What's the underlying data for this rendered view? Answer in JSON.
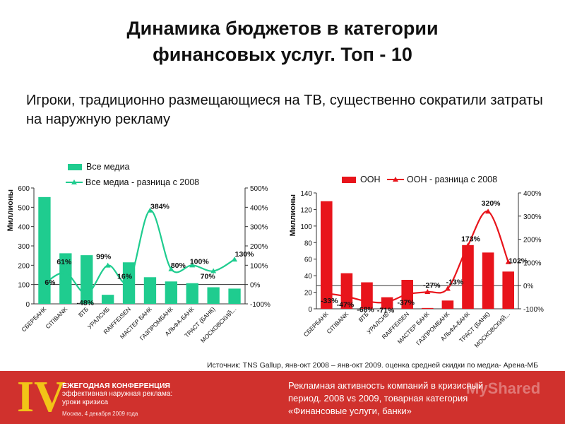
{
  "title_line1": "Динамика бюджетов в категории",
  "title_line2": "финансовых услуг. Топ - 10",
  "subtitle": "Игроки, традиционно размещающиеся на ТВ, существенно сократили затраты на наружную рекламу",
  "source": "Источник: TNS  Gallup, янв-окт 2008 – янв-окт 2009. оценка средней скидки по медиа- Арена-МБ",
  "footer": {
    "roman": "IV",
    "conf_line1": "ЕЖЕГОДНАЯ КОНФЕРЕНЦИЯ",
    "conf_line2": "эффективная наружная реклама:",
    "conf_line3": "уроки кризиса",
    "conf_line4": "Москва, 4 декабря 2009 года",
    "text_line1": "Рекламная активность компаний в кризисный",
    "text_line2": "период. 2008 vs 2009, товарная категория",
    "text_line3": "«Финансовые услуги, банки»",
    "watermark": "MyShared"
  },
  "colors": {
    "left_bar": "#1fcc8f",
    "left_line": "#1fcc8f",
    "right_bar": "#e8141b",
    "right_line": "#e8141b",
    "footer_bg": "#d0312d",
    "footer_accent": "#f2c417"
  },
  "chart_data": [
    {
      "type": "bar",
      "ylabel": "Миллионы",
      "categories": [
        "СБЕРБАНК",
        "CITIBANK",
        "ВТБ",
        "УРАЛСИБ",
        "RAIFFEISEN",
        "МАСТЕР БАНК",
        "ГАЗПРОМБАНК",
        "АЛЬФА-БАНК",
        "ТРАСТ (БАНК)",
        "МОСКОВСКИЙ..."
      ],
      "ylim": [
        0,
        600
      ],
      "y_ticks": [
        "0",
        "100",
        "200",
        "300",
        "400",
        "500",
        "600"
      ],
      "y2lim": [
        -100,
        500
      ],
      "y2_ticks": [
        "-100%",
        "0%",
        "100%",
        "200%",
        "300%",
        "400%",
        "500%"
      ],
      "legend_position": "top",
      "series": [
        {
          "name": "Все медиа",
          "kind": "bar",
          "values": [
            553,
            262,
            252,
            47,
            215,
            138,
            116,
            107,
            86,
            79
          ]
        },
        {
          "name": "Все медиа - разница с 2008",
          "kind": "line",
          "values": [
            6,
            61,
            -48,
            99,
            16,
            384,
            80,
            100,
            70,
            130
          ],
          "labels": [
            "6%",
            "61%",
            "-48%",
            "99%",
            "16%",
            "384%",
            "80%",
            "100%",
            "70%",
            "130%"
          ]
        }
      ]
    },
    {
      "type": "bar",
      "ylabel": "Миллионы",
      "categories": [
        "СБЕРБАНК",
        "CITIBANK",
        "ВТБ",
        "УРАЛСИБ",
        "RAIFFEISEN",
        "МАСТЕР БАНК",
        "ГАЗПРОМБАНК",
        "АЛЬФА-БАНК",
        "ТРАСТ (БАНК)",
        "МОСКОВСКИЙ..."
      ],
      "ylim": [
        0,
        140
      ],
      "y_ticks": [
        "0",
        "20",
        "40",
        "60",
        "80",
        "100",
        "120",
        "140"
      ],
      "y2lim": [
        -100,
        400
      ],
      "y2_ticks": [
        "-100%",
        "0%",
        "100%",
        "200%",
        "300%",
        "400%"
      ],
      "legend_position": "top",
      "series": [
        {
          "name": "ООН",
          "kind": "bar",
          "values": [
            130,
            43,
            32,
            14,
            35,
            1,
            10,
            77,
            68,
            45
          ]
        },
        {
          "name": "ООН - разница с 2008",
          "kind": "line",
          "values": [
            -33,
            -47,
            -68,
            -71,
            -37,
            -27,
            -13,
            173,
            320,
            102
          ],
          "labels": [
            "-33%",
            "-47%",
            "-68%",
            "-71%",
            "-37%",
            "-27%",
            "-13%",
            "173%",
            "320%",
            "102%"
          ]
        }
      ]
    }
  ]
}
